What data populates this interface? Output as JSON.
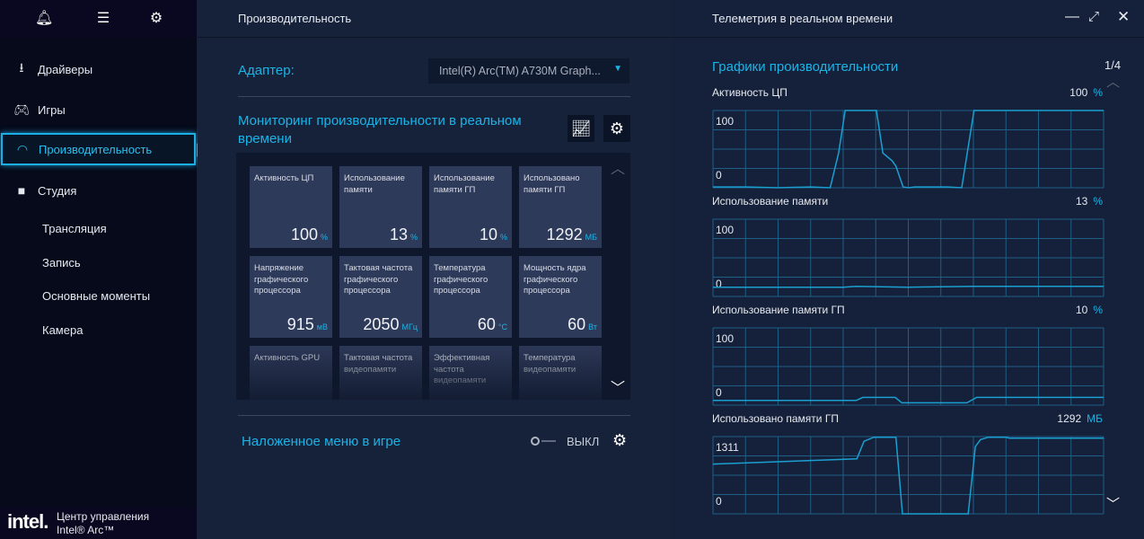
{
  "sidebar": {
    "items": [
      {
        "label": "Драйверы",
        "icon": "download-icon"
      },
      {
        "label": "Игры",
        "icon": "gamepad-icon"
      },
      {
        "label": "Производительность",
        "icon": "gauge-icon"
      },
      {
        "label": "Студия",
        "icon": "camera-icon"
      }
    ],
    "subitems": [
      "Трансляция",
      "Запись",
      "Основные моменты",
      "Камера"
    ],
    "footer": {
      "logo": "intel.",
      "line1": "Центр управления",
      "line2": "Intel® Arc™"
    }
  },
  "main": {
    "title": "Производительность",
    "adapter_label": "Адаптер:",
    "adapter_value": "Intel(R) Arc(TM) A730M Graph...",
    "monitor_title": "Мониторинг производительности в реальном времени",
    "tiles": [
      {
        "label": "Активность ЦП",
        "value": "100",
        "unit": "%"
      },
      {
        "label": "Использование памяти",
        "value": "13",
        "unit": "%"
      },
      {
        "label": "Использование памяти ГП",
        "value": "10",
        "unit": "%"
      },
      {
        "label": "Использовано памяти ГП",
        "value": "1292",
        "unit": "МБ"
      },
      {
        "label": "Напряжение графического процессора",
        "value": "915",
        "unit": "мВ"
      },
      {
        "label": "Тактовая частота графического процессора",
        "value": "2050",
        "unit": "МГц"
      },
      {
        "label": "Температура графического процессора",
        "value": "60",
        "unit": "°C"
      },
      {
        "label": "Мощность ядра графического процессора",
        "value": "60",
        "unit": "Вт"
      },
      {
        "label": "Активность GPU",
        "value": "",
        "unit": ""
      },
      {
        "label": "Тактовая частота видеопамяти",
        "value": "",
        "unit": ""
      },
      {
        "label": "Эффективная частота видеопамяти",
        "value": "",
        "unit": ""
      },
      {
        "label": "Температура видеопамяти",
        "value": "",
        "unit": ""
      }
    ],
    "overlay_label": "Наложенное меню в игре",
    "overlay_state": "ВЫКЛ"
  },
  "telemetry": {
    "title": "Телеметрия в реальном времени",
    "section": "Графики производительности",
    "page": "1/4"
  },
  "colors": {
    "accent": "#1ab4e8",
    "line": "#1a9fd0",
    "grid": "#1d5f85"
  },
  "chart_data": [
    {
      "type": "line",
      "title": "Активность ЦП",
      "value": "100",
      "unit": "%",
      "ylim": [
        0,
        100
      ],
      "ticks": [
        "100",
        "0"
      ],
      "points": [
        [
          0,
          1
        ],
        [
          5,
          1
        ],
        [
          10,
          0
        ],
        [
          15,
          1
        ],
        [
          18,
          0
        ],
        [
          19.3,
          45
        ],
        [
          20.3,
          100
        ],
        [
          25.1,
          100
        ],
        [
          26.1,
          45
        ],
        [
          27.5,
          35
        ],
        [
          28.1,
          28
        ],
        [
          29.2,
          1
        ],
        [
          30,
          0
        ],
        [
          31,
          1
        ],
        [
          36,
          1
        ],
        [
          38.2,
          0
        ],
        [
          40.1,
          100
        ],
        [
          60,
          100
        ]
      ]
    },
    {
      "type": "line",
      "title": "Использование памяти",
      "value": "13",
      "unit": "%",
      "ylim": [
        0,
        100
      ],
      "ticks": [
        "100",
        "0"
      ],
      "points": [
        [
          0,
          12
        ],
        [
          10,
          12
        ],
        [
          20,
          12
        ],
        [
          22,
          13
        ],
        [
          30,
          12
        ],
        [
          40,
          13
        ],
        [
          50,
          13
        ],
        [
          60,
          13
        ]
      ]
    },
    {
      "type": "line",
      "title": "Использование памяти ГП",
      "value": "10",
      "unit": "%",
      "ylim": [
        0,
        100
      ],
      "ticks": [
        "100",
        "0"
      ],
      "points": [
        [
          0,
          6
        ],
        [
          22,
          6
        ],
        [
          23,
          10
        ],
        [
          28,
          10
        ],
        [
          29,
          3
        ],
        [
          39,
          3
        ],
        [
          40.5,
          10
        ],
        [
          60,
          10
        ]
      ]
    },
    {
      "type": "line",
      "title": "Использовано памяти ГП",
      "value": "1292",
      "unit": "МБ",
      "ylim": [
        0,
        1320
      ],
      "ticks": [
        "1311",
        "0"
      ],
      "points": [
        [
          0,
          850
        ],
        [
          22.1,
          940
        ],
        [
          23.2,
          1240
        ],
        [
          24.7,
          1310
        ],
        [
          28.1,
          1310
        ],
        [
          29.1,
          0
        ],
        [
          39.2,
          0
        ],
        [
          40.3,
          1150
        ],
        [
          41.1,
          1270
        ],
        [
          42.3,
          1310
        ],
        [
          45.1,
          1310
        ],
        [
          45.5,
          1292
        ],
        [
          60,
          1292
        ]
      ]
    }
  ]
}
